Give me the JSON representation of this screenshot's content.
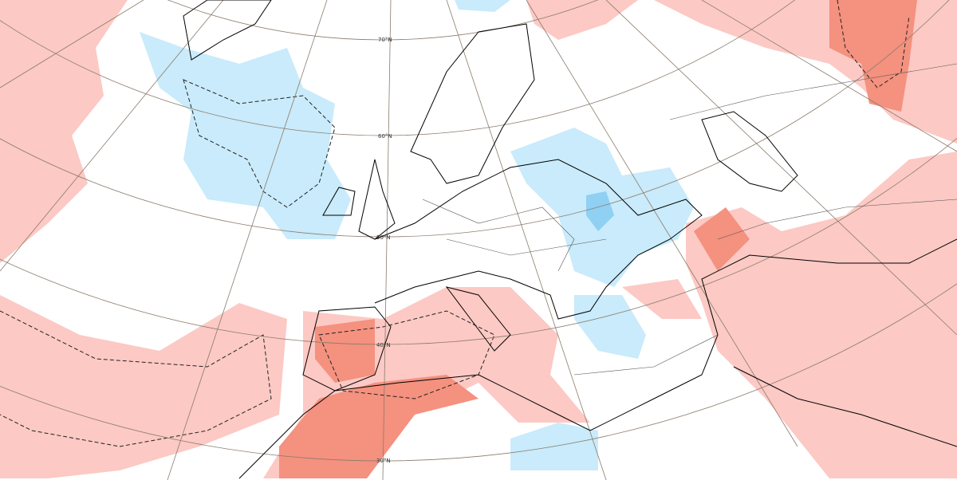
{
  "graticule_labels": [
    "70°N",
    "60°N",
    "50°N",
    "40°N",
    "30°N"
  ]
}
